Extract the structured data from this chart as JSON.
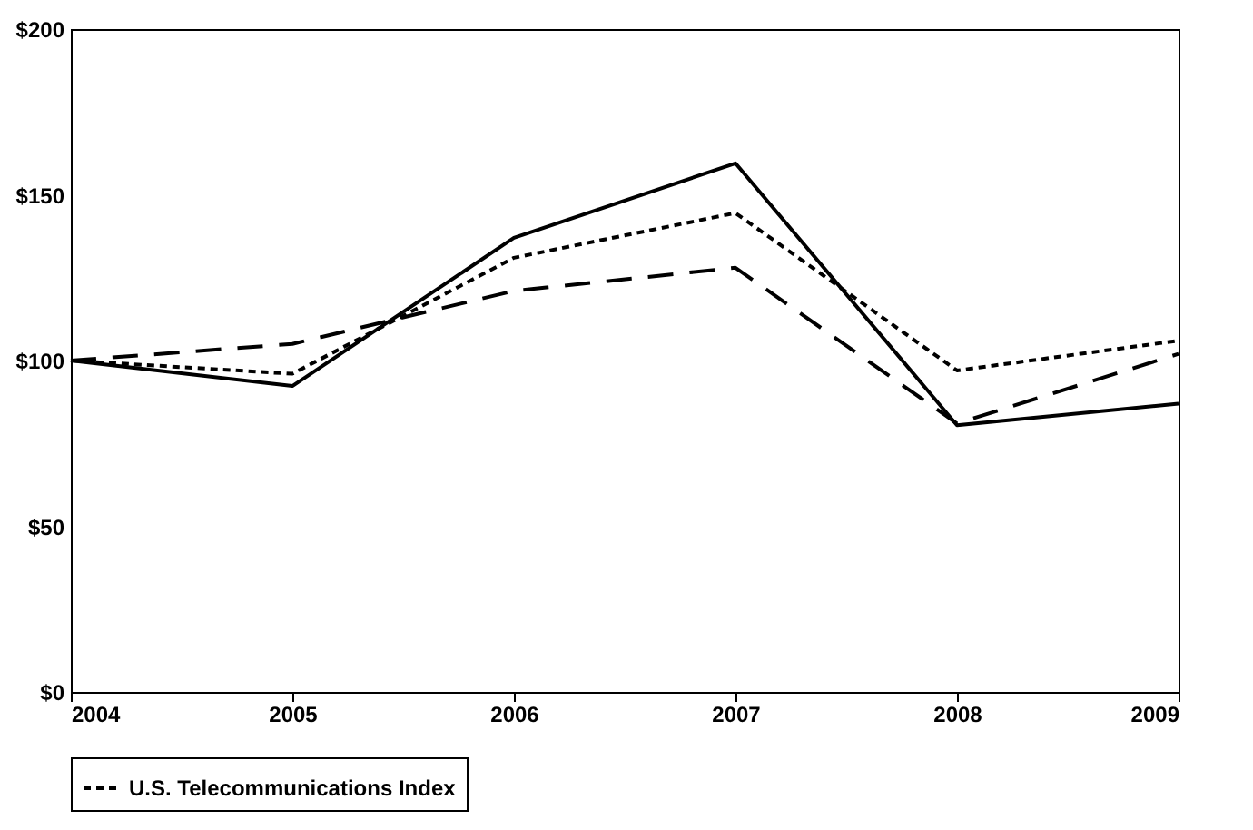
{
  "chart_data": {
    "type": "line",
    "x": [
      2004,
      2005,
      2006,
      2007,
      2008,
      2009
    ],
    "series": [
      {
        "color": "#000000",
        "line_style": "solid",
        "values": [
          100,
          92.3,
          137,
          159.5,
          80.5,
          87
        ]
      },
      {
        "color": "#000000",
        "line_style": "dashed",
        "values": [
          100,
          105,
          121,
          128,
          81,
          102
        ]
      },
      {
        "name": "U.S. Telecommunications Index",
        "color": "#000000",
        "line_style": "dotted",
        "values": [
          100,
          96,
          131,
          144.5,
          97,
          106
        ]
      }
    ],
    "xlim": [
      2004,
      2009
    ],
    "xticks": [
      2004,
      2005,
      2006,
      2007,
      2008,
      2009
    ],
    "ylim": [
      0,
      200
    ],
    "yticks": [
      {
        "value": 0,
        "label": "$0"
      },
      {
        "value": 50,
        "label": "$50"
      },
      {
        "value": 100,
        "label": "$100"
      },
      {
        "value": 150,
        "label": "$150"
      },
      {
        "value": 200,
        "label": "$200"
      }
    ],
    "grid": false,
    "legend": "bottom",
    "marker": "none"
  }
}
